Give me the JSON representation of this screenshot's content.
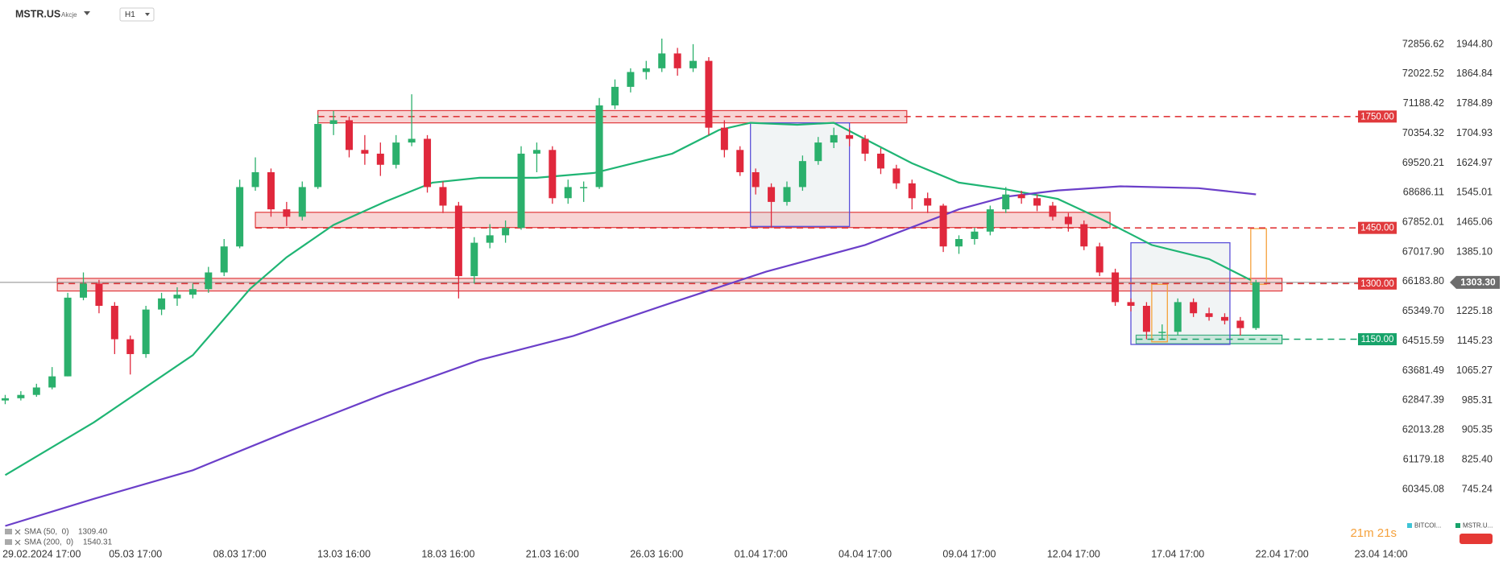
{
  "chart_data": {
    "type": "candlestick",
    "symbol": "MSTR.US",
    "asset_class": "Akcje",
    "timeframe": "H1",
    "countdown": "21m 21s",
    "up_color": "#2bb06c",
    "down_color": "#e0283c",
    "xlim": [
      0,
      268
    ],
    "xticks": [
      {
        "value": 8,
        "label": "29.02.2024  17:00"
      },
      {
        "value": 26,
        "label": "05.03  17:00"
      },
      {
        "value": 46,
        "label": "08.03  17:00"
      },
      {
        "value": 66,
        "label": "13.03  16:00"
      },
      {
        "value": 86,
        "label": "18.03  16:00"
      },
      {
        "value": 106,
        "label": "21.03  16:00"
      },
      {
        "value": 126,
        "label": "26.03  16:00"
      },
      {
        "value": 146,
        "label": "01.04  17:00"
      },
      {
        "value": 166,
        "label": "04.04  17:00"
      },
      {
        "value": 186,
        "label": "09.04  17:00"
      },
      {
        "value": 206,
        "label": "12.04  17:00"
      },
      {
        "value": 226,
        "label": "17.04  17:00"
      },
      {
        "value": 246,
        "label": "22.04  17:00"
      },
      {
        "value": 265,
        "label": "23.04  14:00"
      }
    ],
    "ylim": [
      596,
      2064
    ],
    "yticks": [
      {
        "value": 1944.8,
        "label": "1944.80"
      },
      1864.84,
      1784.89,
      1704.93,
      1624.97,
      1545.01,
      1465.06,
      {
        "value": 1385.1,
        "label": "1385.10"
      },
      1225.18,
      1145.23,
      1065.27,
      985.31,
      905.35,
      {
        "value": 825.4,
        "label": "825.40"
      },
      745.24
    ],
    "y2lim": [
      58784,
      74101
    ],
    "y2ticks": [
      72856.62,
      72022.52,
      71188.42,
      70354.32,
      69520.21,
      68686.11,
      67852.01,
      {
        "value": 67017.9,
        "label": "67017.90"
      },
      {
        "value": 66183.8,
        "label": "66183.80"
      },
      {
        "value": 65349.7,
        "label": "65349.70"
      },
      64515.59,
      63681.49,
      62847.39,
      62013.28,
      61179.18,
      60345.08
    ],
    "x": [
      1,
      4,
      7,
      10,
      13,
      16,
      19,
      22,
      25,
      28,
      31,
      34,
      37,
      40,
      43,
      46,
      49,
      52,
      55,
      58,
      61,
      64,
      67,
      70,
      73,
      76,
      79,
      82,
      85,
      88,
      91,
      94,
      97,
      100,
      103,
      106,
      109,
      112,
      115,
      118,
      121,
      124,
      127,
      130,
      133,
      136,
      139,
      142,
      145,
      148,
      151,
      154,
      157,
      160,
      163,
      166,
      169,
      172,
      175,
      178,
      181,
      184,
      187,
      190,
      193,
      196,
      199,
      202,
      205,
      208,
      211,
      214,
      217,
      220,
      223,
      226,
      229,
      232,
      235,
      238,
      241
    ],
    "open": [
      985,
      991,
      1000,
      1020,
      1050,
      1262,
      1300,
      1240,
      1150,
      1110,
      1230,
      1260,
      1270,
      1285,
      1330,
      1400,
      1560,
      1600,
      1500,
      1480,
      1560,
      1730,
      1740,
      1660,
      1650,
      1620,
      1680,
      1690,
      1560,
      1510,
      1320,
      1410,
      1430,
      1450,
      1650,
      1660,
      1530,
      1560,
      1560,
      1780,
      1830,
      1870,
      1880,
      1920,
      1880,
      1900,
      1720,
      1660,
      1600,
      1560,
      1520,
      1560,
      1630,
      1680,
      1700,
      1690,
      1650,
      1610,
      1570,
      1530,
      1510,
      1400,
      1420,
      1440,
      1500,
      1540,
      1530,
      1510,
      1480,
      1460,
      1400,
      1330,
      1250,
      1240,
      1170,
      1170,
      1250,
      1220,
      1210,
      1200,
      1180
    ],
    "high": [
      1000,
      1010,
      1030,
      1075,
      1275,
      1330,
      1310,
      1250,
      1160,
      1240,
      1275,
      1290,
      1300,
      1345,
      1420,
      1580,
      1640,
      1610,
      1520,
      1575,
      1755,
      1765,
      1750,
      1700,
      1680,
      1700,
      1810,
      1700,
      1575,
      1520,
      1425,
      1460,
      1470,
      1670,
      1680,
      1670,
      1580,
      1575,
      1800,
      1850,
      1880,
      1900,
      1960,
      1935,
      1945,
      1910,
      1740,
      1670,
      1610,
      1570,
      1575,
      1645,
      1695,
      1720,
      1720,
      1700,
      1665,
      1620,
      1580,
      1545,
      1515,
      1430,
      1450,
      1510,
      1560,
      1550,
      1540,
      1520,
      1490,
      1470,
      1410,
      1340,
      1260,
      1250,
      1190,
      1260,
      1260,
      1235,
      1220,
      1210,
      1310
    ],
    "low": [
      975,
      985,
      995,
      1015,
      1050,
      1255,
      1220,
      1110,
      1055,
      1100,
      1215,
      1240,
      1260,
      1275,
      1320,
      1395,
      1550,
      1480,
      1455,
      1470,
      1555,
      1700,
      1640,
      1620,
      1590,
      1610,
      1670,
      1545,
      1490,
      1260,
      1300,
      1395,
      1410,
      1445,
      1600,
      1515,
      1515,
      1520,
      1555,
      1770,
      1815,
      1850,
      1870,
      1860,
      1870,
      1700,
      1640,
      1590,
      1540,
      1450,
      1510,
      1550,
      1620,
      1665,
      1670,
      1630,
      1595,
      1555,
      1500,
      1490,
      1385,
      1380,
      1405,
      1430,
      1490,
      1515,
      1495,
      1470,
      1440,
      1390,
      1320,
      1240,
      1225,
      1150,
      1150,
      1160,
      1210,
      1200,
      1190,
      1160,
      1175
    ],
    "close": [
      991,
      1000,
      1020,
      1050,
      1262,
      1300,
      1240,
      1150,
      1110,
      1230,
      1260,
      1270,
      1285,
      1330,
      1400,
      1560,
      1600,
      1500,
      1480,
      1560,
      1730,
      1740,
      1660,
      1650,
      1620,
      1680,
      1690,
      1560,
      1510,
      1320,
      1410,
      1430,
      1450,
      1650,
      1660,
      1530,
      1560,
      1560,
      1780,
      1830,
      1870,
      1880,
      1920,
      1880,
      1900,
      1720,
      1660,
      1600,
      1560,
      1520,
      1560,
      1630,
      1680,
      1700,
      1690,
      1650,
      1610,
      1570,
      1530,
      1510,
      1400,
      1420,
      1440,
      1500,
      1540,
      1530,
      1510,
      1480,
      1460,
      1400,
      1330,
      1250,
      1240,
      1170,
      1170,
      1250,
      1220,
      1210,
      1200,
      1180,
      1303.3
    ],
    "last_price": {
      "value": 1303.3,
      "label": "1303.30"
    },
    "indicators": [
      {
        "name": "SMA (50,  0)",
        "color": "#1fb574",
        "last_value": 1309.4,
        "last_label": "1309.40",
        "x": [
          1,
          18,
          37,
          48,
          55,
          64,
          74,
          83,
          92,
          103,
          114,
          129,
          138,
          144,
          153,
          160,
          166,
          175,
          184,
          193,
          203,
          212,
          221,
          232,
          240
        ],
        "values": [
          784,
          926,
          1107,
          1286,
          1371,
          1458,
          1521,
          1572,
          1585,
          1585,
          1598,
          1650,
          1714,
          1733,
          1728,
          1733,
          1689,
          1624,
          1572,
          1554,
          1528,
          1469,
          1404,
          1366,
          1309.4
        ]
      },
      {
        "name": "SMA (200,  0)",
        "color": "#6b3fc9",
        "last_value": 1540.31,
        "last_label": "1540.31",
        "x": [
          1,
          18,
          37,
          55,
          74,
          92,
          110,
          129,
          147,
          166,
          184,
          193,
          203,
          215,
          230,
          241
        ],
        "values": [
          647,
          720,
          797,
          900,
          1004,
          1094,
          1159,
          1249,
          1332,
          1404,
          1500,
          1534,
          1551,
          1562,
          1557,
          1540.31
        ]
      }
    ],
    "levels": [
      {
        "value": 1750,
        "label": "1750.00",
        "color": "#e0393c",
        "from": 61
      },
      {
        "value": 1450,
        "label": "1450.00",
        "color": "#e0393c",
        "from": 49
      },
      {
        "value": 1300,
        "label": "1300.00",
        "color": "#e0393c",
        "from": 11
      },
      {
        "value": 1150,
        "label": "1150.00",
        "color": "#17a36a",
        "from": 218
      }
    ],
    "zones": [
      {
        "from": 61,
        "to": 174,
        "low": 1733,
        "high": 1766,
        "color": "#e0393c"
      },
      {
        "from": 49,
        "to": 213,
        "low": 1451,
        "high": 1492,
        "color": "#e0393c"
      },
      {
        "from": 11,
        "to": 246,
        "low": 1280,
        "high": 1314,
        "color": "#e0393c"
      },
      {
        "from": 218,
        "to": 246,
        "low": 1138,
        "high": 1161,
        "color": "#17a36a"
      }
    ],
    "boxes": [
      {
        "from": 144,
        "to": 163,
        "low": 1454,
        "high": 1733,
        "color": "#5a4fd8"
      },
      {
        "from": 217,
        "to": 236,
        "low": 1136,
        "high": 1410,
        "color": "#5a4fd8"
      },
      {
        "from": 221,
        "to": 224,
        "low": 1143,
        "high": 1298,
        "color": "#f5a13c"
      },
      {
        "from": 240,
        "to": 243,
        "low": 1298,
        "high": 1448,
        "color": "#f5a13c"
      }
    ],
    "compare_legend": [
      {
        "name": "BITCOI...",
        "color": "#3ec4d6"
      },
      {
        "name": "MSTR.U...",
        "color": "#17a36a"
      }
    ]
  }
}
